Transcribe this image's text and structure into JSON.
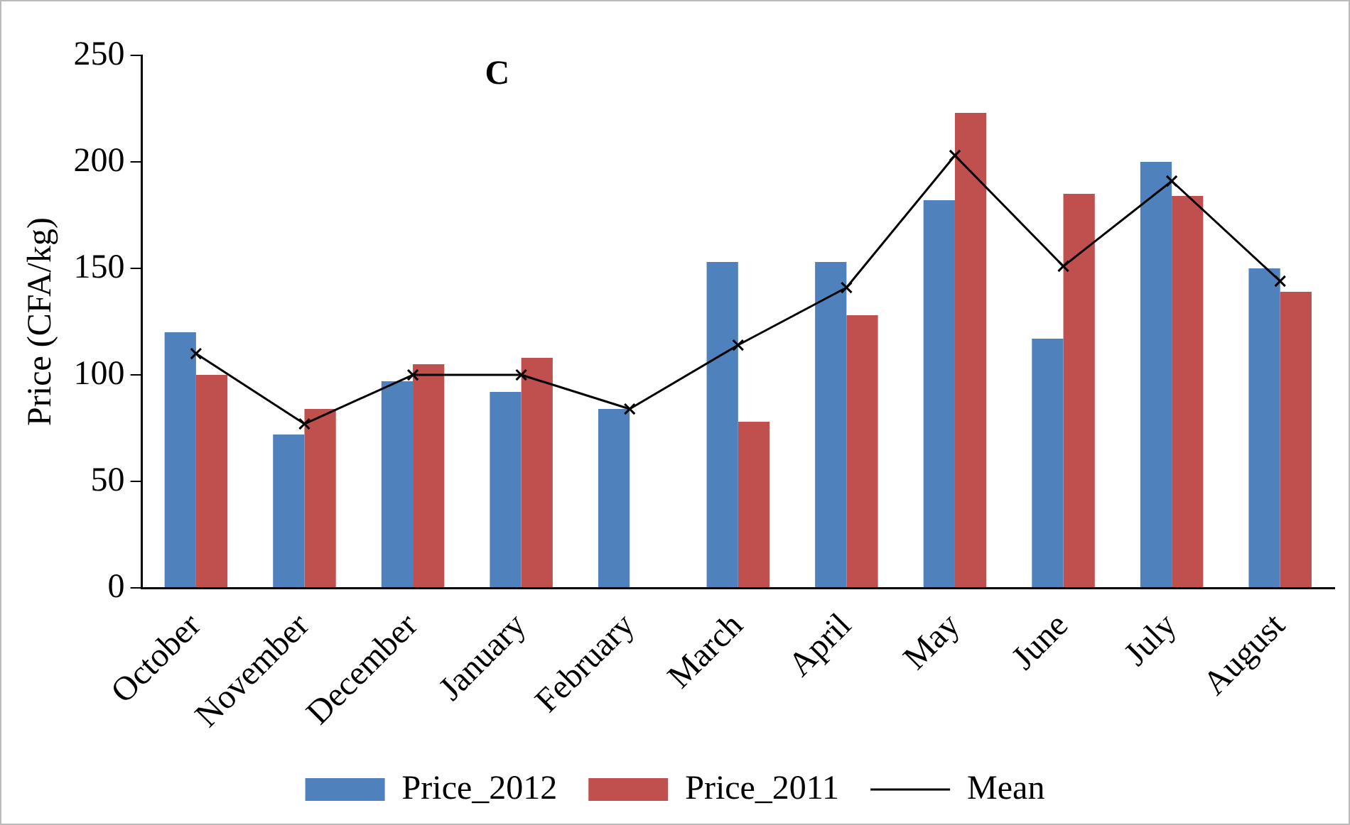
{
  "chart_data": {
    "type": "bar",
    "title": "C",
    "ylabel": "Price (CFA/kg)",
    "categories": [
      "October",
      "November",
      "December",
      "January",
      "February",
      "March",
      "April",
      "May",
      "June",
      "July",
      "August"
    ],
    "series": [
      {
        "name": "Price_2012",
        "color": "#4f81bd",
        "values": [
          120,
          72,
          97,
          92,
          84,
          153,
          153,
          182,
          117,
          200,
          150
        ]
      },
      {
        "name": "Price_2011",
        "color": "#c0504d",
        "values": [
          100,
          84,
          105,
          108,
          null,
          78,
          128,
          223,
          185,
          184,
          139
        ]
      },
      {
        "name": "Mean",
        "type": "line",
        "color": "#000000",
        "marker": "cross",
        "line_style": "solid",
        "values": [
          110,
          77,
          100,
          100,
          84,
          114,
          141,
          203,
          151,
          191,
          144
        ]
      }
    ],
    "ylim": [
      0,
      250
    ],
    "yticks": [
      0,
      50,
      100,
      150,
      200,
      250
    ],
    "grid": false,
    "legend": "bottom"
  }
}
